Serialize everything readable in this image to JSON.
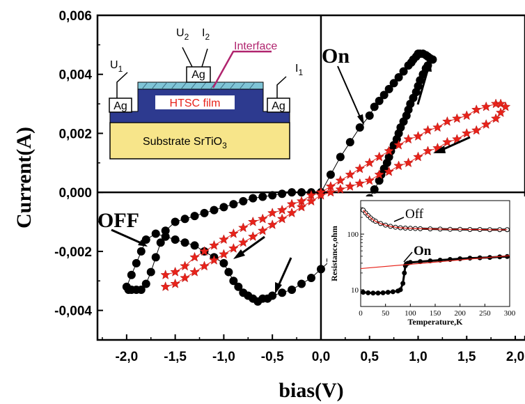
{
  "chart_data": [
    {
      "type": "scatter",
      "xlabel": "bias(V)",
      "ylabel": "Current(A)",
      "xlim": [
        -2.3,
        2.1
      ],
      "ylim": [
        -0.005,
        0.006
      ],
      "x_ticks": [
        "-2,0",
        "-1,5",
        "-1,0",
        "-0,5",
        "0,0",
        "0,5",
        "1,0",
        "1,5",
        "2,0"
      ],
      "x_tick_values": [
        -2.0,
        -1.5,
        -1.0,
        -0.5,
        0.0,
        0.5,
        1.0,
        1.5,
        2.0
      ],
      "y_ticks": [
        "0,006",
        "0,004",
        "0,002",
        "0,000",
        "-0,002",
        "-0,004"
      ],
      "y_tick_values": [
        0.006,
        0.004,
        0.002,
        0.0,
        -0.002,
        -0.004
      ],
      "series": [
        {
          "marker": "circle",
          "color": "#000000",
          "x": [
            0.0,
            0.1,
            0.2,
            0.3,
            0.4,
            0.5,
            0.55,
            0.6,
            0.65,
            0.7,
            0.75,
            0.8,
            0.85,
            0.9,
            0.93,
            0.95,
            0.98,
            1.0,
            1.02,
            1.05,
            1.08,
            1.1,
            1.12,
            1.15,
            1.1,
            1.08,
            1.05,
            1.02,
            1.0,
            0.98,
            0.95,
            0.92,
            0.9,
            0.88,
            0.85,
            0.82,
            0.8,
            0.78,
            0.75,
            0.72,
            0.7,
            0.68,
            0.65,
            0.62,
            0.6,
            0.55,
            0.5,
            0.4,
            0.3,
            0.2,
            0.1,
            0.0,
            -0.1,
            -0.2,
            -0.3,
            -0.4,
            -0.5,
            -0.55,
            -0.6,
            -0.65,
            -0.7,
            -0.75,
            -0.8,
            -0.85,
            -0.9,
            -0.95,
            -1.0,
            -1.1,
            -1.2,
            -1.3,
            -1.4,
            -1.5,
            -1.6,
            -1.7,
            -1.8,
            -1.85,
            -1.9,
            -1.95,
            -2.0,
            -1.98,
            -1.95,
            -1.9,
            -1.85,
            -1.8,
            -1.75,
            -1.7,
            -1.65,
            -1.6,
            -1.5,
            -1.4,
            -1.3,
            -1.2,
            -1.1,
            -1.0,
            -0.9,
            -0.8,
            -0.7,
            -0.6,
            -0.5,
            -0.4,
            -0.3,
            -0.2,
            -0.1,
            0.0
          ],
          "y": [
            0.0,
            0.0006,
            0.0012,
            0.0017,
            0.0022,
            0.0026,
            0.0029,
            0.0031,
            0.0033,
            0.0035,
            0.0037,
            0.0039,
            0.0041,
            0.0043,
            0.0044,
            0.0045,
            0.0046,
            0.0047,
            0.0047,
            0.0047,
            0.00465,
            0.0046,
            0.00455,
            0.0045,
            0.0043,
            0.0042,
            0.004,
            0.0038,
            0.0036,
            0.0034,
            0.0032,
            0.003,
            0.0028,
            0.0026,
            0.0024,
            0.0022,
            0.002,
            0.0018,
            0.0016,
            0.0014,
            0.0012,
            0.001,
            0.0008,
            0.0006,
            0.0004,
            0.0001,
            -0.0002,
            -0.0008,
            -0.0014,
            -0.0019,
            -0.0023,
            -0.0026,
            -0.0029,
            -0.0031,
            -0.0033,
            -0.0034,
            -0.0035,
            -0.0036,
            -0.0036,
            -0.0037,
            -0.0036,
            -0.0035,
            -0.0034,
            -0.0032,
            -0.003,
            -0.0027,
            -0.0024,
            -0.0022,
            -0.002,
            -0.0018,
            -0.0017,
            -0.0016,
            -0.0015,
            -0.0014,
            -0.0016,
            -0.002,
            -0.0024,
            -0.0028,
            -0.0032,
            -0.0033,
            -0.0033,
            -0.0033,
            -0.0033,
            -0.0031,
            -0.0027,
            -0.0022,
            -0.0017,
            -0.0013,
            -0.001,
            -0.0009,
            -0.0008,
            -0.0007,
            -0.0006,
            -0.0005,
            -0.0004,
            -0.0003,
            -0.0002,
            -0.00015,
            -0.0001,
            -5e-05,
            0.0,
            0.0,
            0.0,
            0.0
          ]
        },
        {
          "marker": "star",
          "color": "#e8231a",
          "x": [
            -1.6,
            -1.5,
            -1.4,
            -1.3,
            -1.2,
            -1.1,
            -1.0,
            -0.9,
            -0.8,
            -0.7,
            -0.6,
            -0.5,
            -0.4,
            -0.3,
            -0.2,
            -0.1,
            0.0,
            0.1,
            0.2,
            0.3,
            0.4,
            0.5,
            0.6,
            0.7,
            0.8,
            0.9,
            1.0,
            1.1,
            1.2,
            1.3,
            1.4,
            1.5,
            1.6,
            1.7,
            1.8,
            1.85,
            1.9,
            1.85,
            1.8,
            1.7,
            1.6,
            1.5,
            1.4,
            1.3,
            1.2,
            1.1,
            1.0,
            0.9,
            0.8,
            0.7,
            0.6,
            0.5,
            0.4,
            0.3,
            0.2,
            0.1,
            0.0,
            -0.1,
            -0.2,
            -0.3,
            -0.4,
            -0.5,
            -0.6,
            -0.7,
            -0.8,
            -0.9,
            -1.0,
            -1.1,
            -1.2,
            -1.3,
            -1.4,
            -1.5,
            -1.6
          ],
          "y": [
            -0.0028,
            -0.0027,
            -0.0025,
            -0.0022,
            -0.002,
            -0.0018,
            -0.0016,
            -0.0014,
            -0.0012,
            -0.001,
            -0.0009,
            -0.0007,
            -0.0006,
            -0.0004,
            -0.0003,
            -0.0001,
            0.0,
            0.0002,
            0.0004,
            0.0006,
            0.0008,
            0.001,
            0.0012,
            0.0014,
            0.0016,
            0.0018,
            0.0019,
            0.0021,
            0.0022,
            0.0024,
            0.0025,
            0.0026,
            0.0028,
            0.0029,
            0.003,
            0.003,
            0.0029,
            0.0027,
            0.0025,
            0.0023,
            0.0021,
            0.002,
            0.0018,
            0.0017,
            0.0015,
            0.0014,
            0.0012,
            0.001,
            0.0009,
            0.0007,
            0.0006,
            0.0004,
            0.0003,
            0.0002,
            0.0001,
            0.0,
            -0.0001,
            -0.0003,
            -0.0005,
            -0.0007,
            -0.0009,
            -0.0011,
            -0.0013,
            -0.0015,
            -0.0017,
            -0.0019,
            -0.0021,
            -0.0023,
            -0.0025,
            -0.0027,
            -0.0029,
            -0.0031,
            -0.0032
          ]
        }
      ],
      "annotations": [
        "On",
        "OFF"
      ]
    },
    {
      "type": "scatter",
      "xlabel": "Temperature,K",
      "ylabel": "Resistance,ohm",
      "xlim": [
        0,
        300
      ],
      "ylim": [
        5,
        400
      ],
      "log_y": true,
      "x_ticks": [
        "0",
        "50",
        "100",
        "150",
        "200",
        "250",
        "300"
      ],
      "x_tick_values": [
        0,
        50,
        100,
        150,
        200,
        250,
        300
      ],
      "y_ticks": [
        "100",
        "10"
      ],
      "y_tick_values": [
        100,
        10
      ],
      "series": [
        {
          "name": "Off",
          "marker": "open-circle",
          "color": "#000000",
          "x": [
            5,
            10,
            15,
            20,
            25,
            30,
            40,
            50,
            60,
            70,
            80,
            90,
            100,
            110,
            120,
            140,
            160,
            180,
            200,
            220,
            240,
            260,
            280,
            295
          ],
          "y": [
            270,
            240,
            215,
            195,
            180,
            170,
            155,
            145,
            138,
            133,
            130,
            128,
            127,
            126,
            125,
            124,
            123,
            122,
            122,
            121,
            121,
            120,
            120,
            120
          ]
        },
        {
          "name": "On",
          "marker": "filled-circle",
          "color": "#000000",
          "x": [
            5,
            15,
            25,
            35,
            45,
            55,
            65,
            75,
            80,
            85,
            88,
            90,
            92,
            95,
            100,
            120,
            140,
            160,
            180,
            200,
            220,
            240,
            260,
            280,
            295
          ],
          "y": [
            9,
            8.8,
            8.7,
            8.7,
            8.8,
            9,
            9.2,
            9.5,
            10,
            13,
            20,
            27,
            29,
            30,
            31,
            32,
            33,
            34,
            35,
            36,
            37,
            37.5,
            38,
            39,
            39.5
          ]
        },
        {
          "marker": "line",
          "color": "#e8231a",
          "x": [
            0,
            300
          ],
          "y": [
            24,
            41
          ]
        }
      ],
      "annotations": [
        "Off",
        "On"
      ]
    }
  ],
  "schematic": {
    "labels": {
      "u1": "U",
      "u1_sub": "1",
      "u2": "U",
      "u2_sub": "2",
      "i1": "I",
      "i1_sub": "1",
      "i2": "I",
      "i2_sub": "2",
      "interface": "Interface",
      "ag": "Ag",
      "htsc": "HTSC film",
      "substrate": "Substrate SrTiO",
      "substrate_sub": "3"
    },
    "colors": {
      "substrate": "#f7e58a",
      "film": "#2d3a8f",
      "interface_layer": "#7fc4d6",
      "interface_line": "#b0246e",
      "htsc_label_box": "#ffffff",
      "htsc_label_text": "#e8231a"
    }
  },
  "colors": {
    "black": "#000000",
    "red": "#e8231a"
  }
}
